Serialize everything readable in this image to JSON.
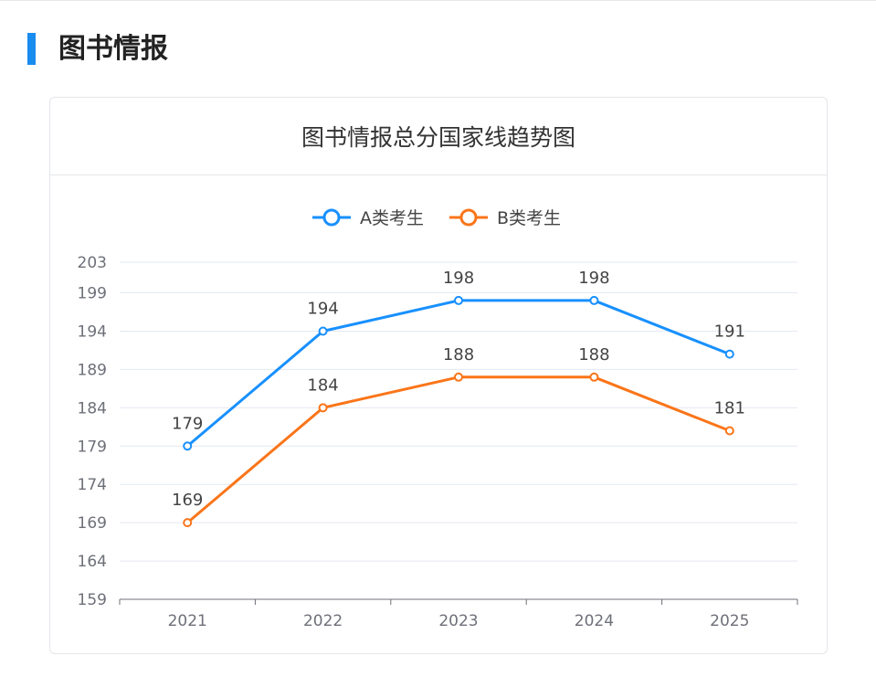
{
  "page": {
    "section_title": "图书情报"
  },
  "card": {
    "title": "图书情报总分国家线趋势图"
  },
  "chart_data": {
    "type": "line",
    "title": "图书情报总分国家线趋势图",
    "categories": [
      "2021",
      "2022",
      "2023",
      "2024",
      "2025"
    ],
    "series": [
      {
        "name": "A类考生",
        "values": [
          179,
          194,
          198,
          198,
          191
        ],
        "color": "#1890ff"
      },
      {
        "name": "B类考生",
        "values": [
          169,
          184,
          188,
          188,
          181
        ],
        "color": "#fa7519"
      }
    ],
    "y_ticks": [
      159,
      164,
      169,
      174,
      179,
      184,
      189,
      194,
      199,
      203
    ],
    "ylim": [
      159,
      203
    ],
    "legend": "top-center",
    "grid": true
  }
}
